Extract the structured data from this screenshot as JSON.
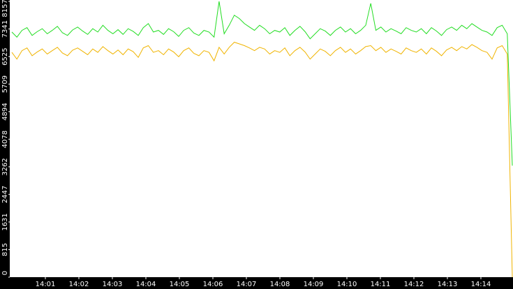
{
  "chart_data": {
    "type": "line",
    "xticks": [
      "14:01",
      "14:02",
      "14:03",
      "14:04",
      "14:05",
      "14:06",
      "14:07",
      "14:08",
      "14:09",
      "14:10",
      "14:11",
      "14:12",
      "14:13",
      "14:14"
    ],
    "ylim": [
      0,
      8157
    ],
    "yticks": [
      0,
      815,
      1631,
      2447,
      3262,
      4078,
      4894,
      5709,
      6525,
      7341,
      8157
    ],
    "series": [
      {
        "color": "#22dd22",
        "values": [
          7250,
          7100,
          7300,
          7380,
          7150,
          7260,
          7350,
          7200,
          7300,
          7420,
          7230,
          7150,
          7310,
          7400,
          7280,
          7180,
          7350,
          7250,
          7450,
          7300,
          7200,
          7320,
          7180,
          7350,
          7270,
          7150,
          7380,
          7500,
          7250,
          7300,
          7180,
          7350,
          7260,
          7120,
          7300,
          7380,
          7220,
          7150,
          7300,
          7250,
          7100,
          8157,
          7200,
          7450,
          7750,
          7650,
          7500,
          7400,
          7300,
          7450,
          7350,
          7200,
          7300,
          7250,
          7380,
          7150,
          7300,
          7420,
          7260,
          7050,
          7200,
          7350,
          7280,
          7150,
          7300,
          7400,
          7250,
          7350,
          7200,
          7300,
          7450,
          8100,
          7300,
          7400,
          7250,
          7350,
          7280,
          7200,
          7380,
          7300,
          7250,
          7350,
          7200,
          7380,
          7280,
          7150,
          7320,
          7400,
          7300,
          7450,
          7350,
          7500,
          7400,
          7300,
          7250,
          7150,
          7380,
          7450,
          7200,
          3300
        ]
      },
      {
        "color": "#f0b400",
        "values": [
          6650,
          6450,
          6700,
          6780,
          6550,
          6660,
          6750,
          6600,
          6700,
          6800,
          6630,
          6550,
          6710,
          6780,
          6680,
          6580,
          6750,
          6650,
          6820,
          6700,
          6600,
          6720,
          6580,
          6750,
          6670,
          6500,
          6780,
          6850,
          6650,
          6700,
          6580,
          6750,
          6660,
          6520,
          6700,
          6780,
          6620,
          6550,
          6700,
          6650,
          6400,
          6800,
          6600,
          6800,
          6950,
          6900,
          6850,
          6780,
          6700,
          6800,
          6750,
          6600,
          6700,
          6650,
          6780,
          6550,
          6700,
          6800,
          6660,
          6450,
          6600,
          6750,
          6680,
          6550,
          6700,
          6800,
          6650,
          6750,
          6600,
          6700,
          6820,
          6850,
          6700,
          6800,
          6650,
          6750,
          6680,
          6600,
          6780,
          6700,
          6650,
          6750,
          6600,
          6780,
          6680,
          6550,
          6720,
          6800,
          6700,
          6820,
          6750,
          6880,
          6800,
          6700,
          6650,
          6450,
          6780,
          6850,
          6600,
          0
        ]
      }
    ]
  }
}
